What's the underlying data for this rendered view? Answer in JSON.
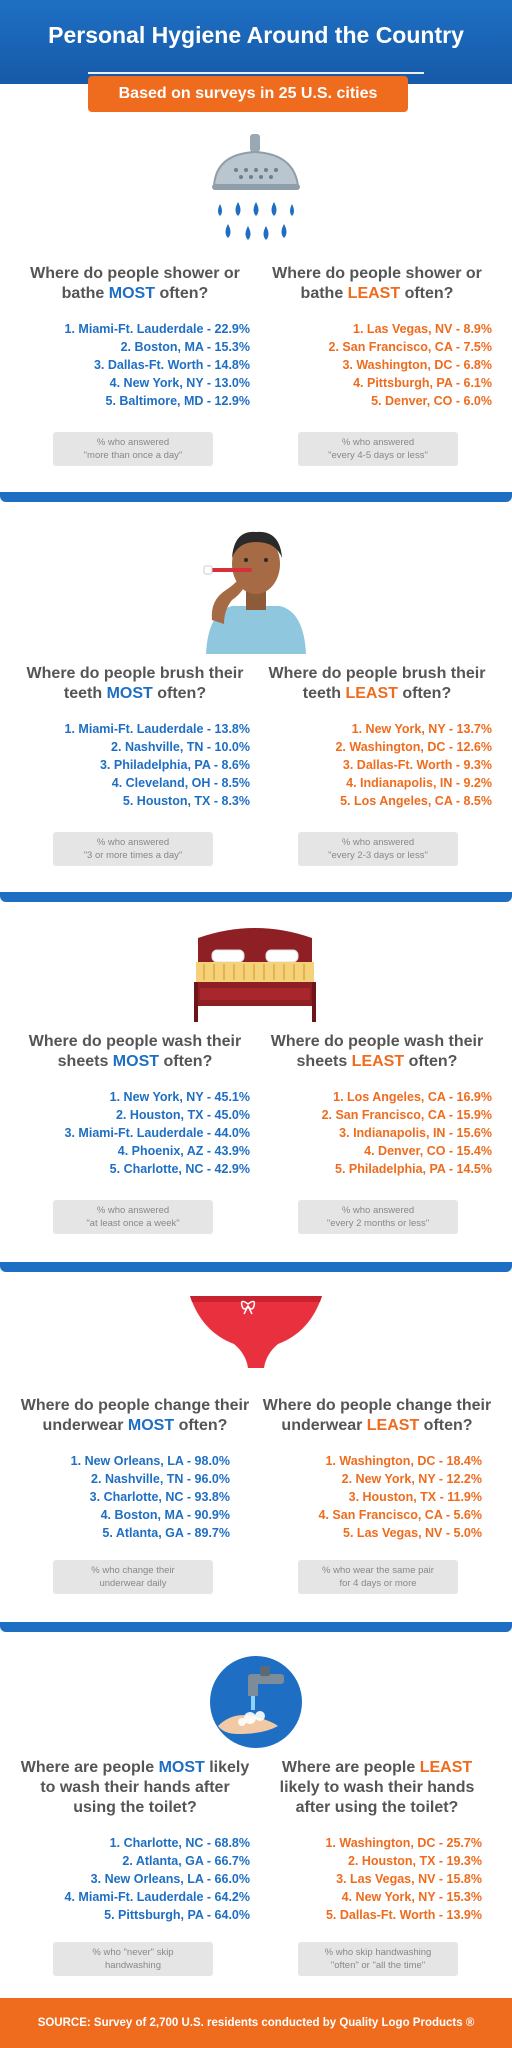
{
  "header": {
    "title": "Personal Hygiene Around the Country",
    "subtitle": "Based on surveys in 25 U.S. cities"
  },
  "sections": [
    {
      "icon": "shower-head-icon",
      "most": {
        "q_pre": "Where do people shower or bathe ",
        "q_key": "MOST",
        "q_post": " often?",
        "items": [
          "1. Miami-Ft. Lauderdale - 22.9%",
          "2. Boston, MA - 15.3%",
          "3. Dallas-Ft. Worth - 14.8%",
          "4. New York, NY - 13.0%",
          "5. Baltimore, MD - 12.9%"
        ],
        "note_1": "% who answered",
        "note_2": "\"more than once a day\""
      },
      "least": {
        "q_pre": "Where do people shower or bathe ",
        "q_key": "LEAST",
        "q_post": " often?",
        "items": [
          "1. Las Vegas, NV - 8.9%",
          "2. San Francisco, CA - 7.5%",
          "3. Washington, DC - 6.8%",
          "4. Pittsburgh, PA - 6.1%",
          "5. Denver, CO - 6.0%"
        ],
        "note_1": "% who answered",
        "note_2": "\"every 4-5 days or less\""
      }
    },
    {
      "icon": "toothbrush-person-icon",
      "most": {
        "q_pre": "Where do people brush their teeth ",
        "q_key": "MOST",
        "q_post": " often?",
        "items": [
          "1. Miami-Ft. Lauderdale - 13.8%",
          "2. Nashville, TN - 10.0%",
          "3. Philadelphia, PA - 8.6%",
          "4. Cleveland, OH - 8.5%",
          "5. Houston, TX - 8.3%"
        ],
        "note_1": "% who answered",
        "note_2": "\"3 or more times a day\""
      },
      "least": {
        "q_pre": "Where do people brush their teeth ",
        "q_key": "LEAST",
        "q_post": " often?",
        "items": [
          "1. New York, NY - 13.7%",
          "2. Washington, DC - 12.6%",
          "3. Dallas-Ft. Worth - 9.3%",
          "4. Indianapolis, IN - 9.2%",
          "5. Los Angeles, CA - 8.5%"
        ],
        "note_1": "% who answered",
        "note_2": "\"every 2-3 days or less\""
      }
    },
    {
      "icon": "bed-icon",
      "most": {
        "q_pre": "Where do people wash their sheets ",
        "q_key": "MOST",
        "q_post": " often?",
        "items": [
          "1. New York, NY - 45.1%",
          "2. Houston, TX - 45.0%",
          "3. Miami-Ft. Lauderdale - 44.0%",
          "4. Phoenix, AZ - 43.9%",
          "5. Charlotte, NC - 42.9%"
        ],
        "note_1": "% who answered",
        "note_2": "\"at least once a week\""
      },
      "least": {
        "q_pre": "Where do people wash their sheets ",
        "q_key": "LEAST",
        "q_post": " often?",
        "items": [
          "1. Los Angeles, CA - 16.9%",
          "2. San Francisco, CA - 15.9%",
          "3. Indianapolis, IN - 15.6%",
          "4. Denver, CO  - 15.4%",
          "5. Philadelphia, PA - 14.5%"
        ],
        "note_1": "% who answered",
        "note_2": "\"every 2 months or less\""
      }
    },
    {
      "icon": "underwear-icon",
      "most": {
        "q_pre": "Where do people change their underwear ",
        "q_key": "MOST",
        "q_post": " often?",
        "items": [
          "1. New Orleans, LA - 98.0%",
          "2. Nashville, TN - 96.0%",
          "3. Charlotte, NC - 93.8%",
          "4. Boston, MA - 90.9%",
          "5. Atlanta, GA - 89.7%"
        ],
        "note_1": "% who change their",
        "note_2": "underwear daily"
      },
      "least": {
        "q_pre": "Where do people change their underwear ",
        "q_key": "LEAST",
        "q_post": " often?",
        "items": [
          "1. Washington, DC - 18.4%",
          "2. New York, NY - 12.2%",
          "3. Houston, TX - 11.9%",
          "4. San Francisco, CA - 5.6%",
          "5. Las Vegas, NV - 5.0%"
        ],
        "note_1": "% who wear the same pair",
        "note_2": "for 4 days or more"
      }
    },
    {
      "icon": "hand-washing-faucet-icon",
      "most": {
        "q_pre": "Where are people ",
        "q_key": "MOST",
        "q_post": " likely to wash their hands after using the toilet?",
        "items": [
          "1. Charlotte, NC - 68.8%",
          "2. Atlanta, GA - 66.7%",
          "3. New Orleans, LA - 66.0%",
          "4. Miami-Ft. Lauderdale - 64.2%",
          "5. Pittsburgh, PA - 64.0%"
        ],
        "note_1": "% who \"never\" skip",
        "note_2": "handwashing"
      },
      "least": {
        "q_pre": "Where are people ",
        "q_key": "LEAST",
        "q_post": " likely to wash their hands after using the toilet?",
        "items": [
          "1. Washington, DC - 25.7%",
          "2. Houston, TX - 19.3%",
          "3. Las Vegas, NV - 15.8%",
          "4. New York, NY - 15.3%",
          "5. Dallas-Ft. Worth - 13.9%"
        ],
        "note_1": "% who skip handwashing",
        "note_2": "\"often\" or \"all the time\""
      }
    }
  ],
  "footer": {
    "source": "SOURCE: Survey of 2,700 U.S. residents conducted by Quality Logo Products ®"
  },
  "colors": {
    "blue": "#1e6fc4",
    "orange": "#ef6c1e",
    "gray_note": "#e5e5e5"
  }
}
